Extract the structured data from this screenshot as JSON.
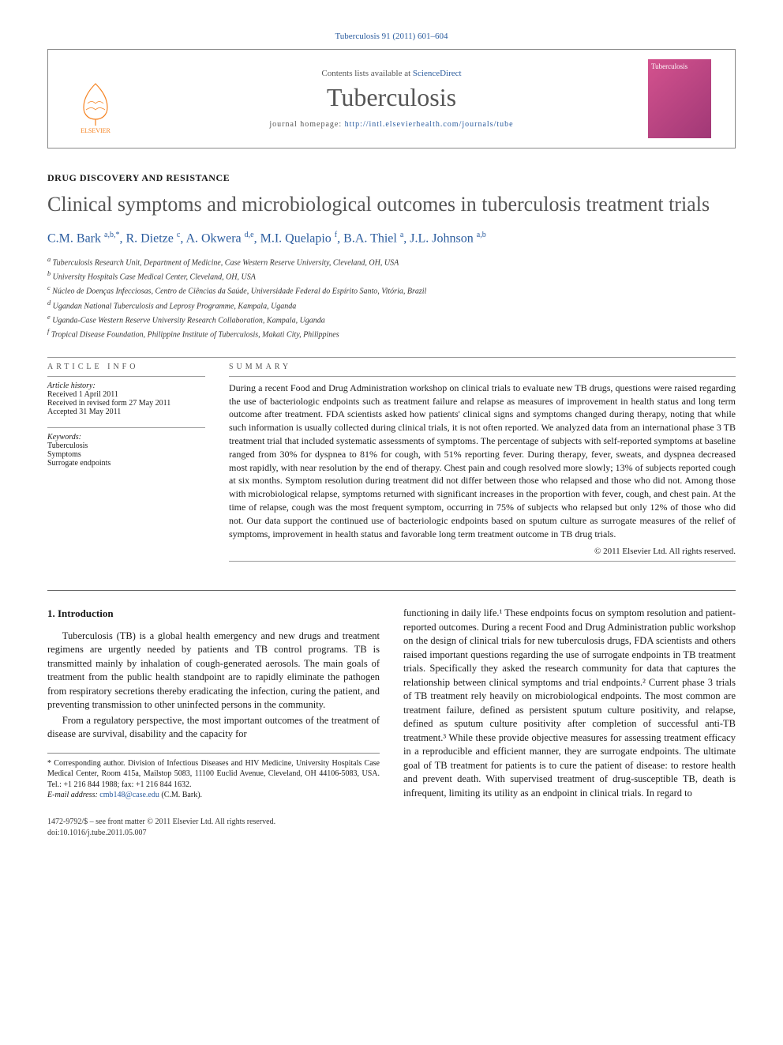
{
  "citation": "Tuberculosis 91 (2011) 601–604",
  "header": {
    "contents_prefix": "Contents lists available at ",
    "contents_link": "ScienceDirect",
    "journal": "Tuberculosis",
    "homepage_prefix": "journal homepage: ",
    "homepage_url": "http://intl.elsevierhealth.com/journals/tube",
    "publisher_label": "ELSEVIER",
    "cover_label": "Tuberculosis"
  },
  "section_label": "DRUG DISCOVERY AND RESISTANCE",
  "title": "Clinical symptoms and microbiological outcomes in tuberculosis treatment trials",
  "authors_html": "C.M. Bark <sup>a,b,*</sup>, R. Dietze <sup>c</sup>, A. Okwera <sup>d,e</sup>, M.I. Quelapio <sup>f</sup>, B.A. Thiel <sup>a</sup>, J.L. Johnson <sup>a,b</sup>",
  "affiliations": [
    "a Tuberculosis Research Unit, Department of Medicine, Case Western Reserve University, Cleveland, OH, USA",
    "b University Hospitals Case Medical Center, Cleveland, OH, USA",
    "c Núcleo de Doenças Infecciosas, Centro de Ciências da Saúde, Universidade Federal do Espírito Santo, Vitória, Brazil",
    "d Ugandan National Tuberculosis and Leprosy Programme, Kampala, Uganda",
    "e Uganda-Case Western Reserve University Research Collaboration, Kampala, Uganda",
    "f Tropical Disease Foundation, Philippine Institute of Tuberculosis, Makati City, Philippines"
  ],
  "article_info": {
    "heading": "ARTICLE INFO",
    "history_label": "Article history:",
    "received": "Received 1 April 2011",
    "revised": "Received in revised form 27 May 2011",
    "accepted": "Accepted 31 May 2011",
    "keywords_label": "Keywords:",
    "keywords": [
      "Tuberculosis",
      "Symptoms",
      "Surrogate endpoints"
    ]
  },
  "summary": {
    "heading": "SUMMARY",
    "text": "During a recent Food and Drug Administration workshop on clinical trials to evaluate new TB drugs, questions were raised regarding the use of bacteriologic endpoints such as treatment failure and relapse as measures of improvement in health status and long term outcome after treatment. FDA scientists asked how patients' clinical signs and symptoms changed during therapy, noting that while such information is usually collected during clinical trials, it is not often reported. We analyzed data from an international phase 3 TB treatment trial that included systematic assessments of symptoms. The percentage of subjects with self-reported symptoms at baseline ranged from 30% for dyspnea to 81% for cough, with 51% reporting fever. During therapy, fever, sweats, and dyspnea decreased most rapidly, with near resolution by the end of therapy. Chest pain and cough resolved more slowly; 13% of subjects reported cough at six months. Symptom resolution during treatment did not differ between those who relapsed and those who did not. Among those with microbiological relapse, symptoms returned with significant increases in the proportion with fever, cough, and chest pain. At the time of relapse, cough was the most frequent symptom, occurring in 75% of subjects who relapsed but only 12% of those who did not. Our data support the continued use of bacteriologic endpoints based on sputum culture as surrogate measures of the relief of symptoms, improvement in health status and favorable long term treatment outcome in TB drug trials.",
    "copyright": "© 2011 Elsevier Ltd. All rights reserved."
  },
  "body": {
    "intro_heading": "1. Introduction",
    "p1": "Tuberculosis (TB) is a global health emergency and new drugs and treatment regimens are urgently needed by patients and TB control programs. TB is transmitted mainly by inhalation of cough-generated aerosols. The main goals of treatment from the public health standpoint are to rapidly eliminate the pathogen from respiratory secretions thereby eradicating the infection, curing the patient, and preventing transmission to other uninfected persons in the community.",
    "p2": "From a regulatory perspective, the most important outcomes of the treatment of disease are survival, disability and the capacity for",
    "p3": "functioning in daily life.¹ These endpoints focus on symptom resolution and patient-reported outcomes. During a recent Food and Drug Administration public workshop on the design of clinical trials for new tuberculosis drugs, FDA scientists and others raised important questions regarding the use of surrogate endpoints in TB treatment trials. Specifically they asked the research community for data that captures the relationship between clinical symptoms and trial endpoints.² Current phase 3 trials of TB treatment rely heavily on microbiological endpoints. The most common are treatment failure, defined as persistent sputum culture positivity, and relapse, defined as sputum culture positivity after completion of successful anti-TB treatment.³ While these provide objective measures for assessing treatment efficacy in a reproducible and efficient manner, they are surrogate endpoints. The ultimate goal of TB treatment for patients is to cure the patient of disease: to restore health and prevent death. With supervised treatment of drug-susceptible TB, death is infrequent, limiting its utility as an endpoint in clinical trials. In regard to"
  },
  "correspondence": {
    "text": "* Corresponding author. Division of Infectious Diseases and HIV Medicine, University Hospitals Case Medical Center, Room 415a, Mailstop 5083, 11100 Euclid Avenue, Cleveland, OH 44106-5083, USA. Tel.: +1 216 844 1988; fax: +1 216 844 1632.",
    "email_label": "E-mail address: ",
    "email": "cmb148@case.edu",
    "email_suffix": " (C.M. Bark)."
  },
  "footer": {
    "line1": "1472-9792/$ – see front matter © 2011 Elsevier Ltd. All rights reserved.",
    "line2": "doi:10.1016/j.tube.2011.05.007"
  },
  "colors": {
    "link": "#2b5c9e",
    "text": "#1a1a1a",
    "muted": "#555555",
    "orange": "#f58220",
    "cover_bg": "#b04088"
  }
}
